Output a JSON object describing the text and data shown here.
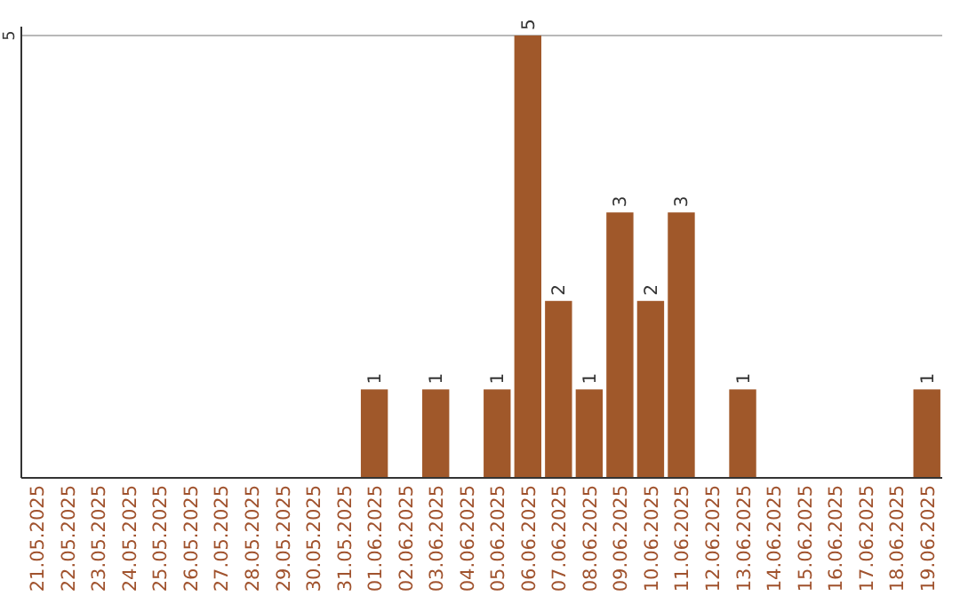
{
  "chart_data": {
    "type": "bar",
    "categories": [
      "21.05.2025",
      "22.05.2025",
      "23.05.2025",
      "24.05.2025",
      "25.05.2025",
      "26.05.2025",
      "27.05.2025",
      "28.05.2025",
      "29.05.2025",
      "30.05.2025",
      "31.05.2025",
      "01.06.2025",
      "02.06.2025",
      "03.06.2025",
      "04.06.2025",
      "05.06.2025",
      "06.06.2025",
      "07.06.2025",
      "08.06.2025",
      "09.06.2025",
      "10.06.2025",
      "11.06.2025",
      "12.06.2025",
      "13.06.2025",
      "14.06.2025",
      "15.06.2025",
      "16.06.2025",
      "17.06.2025",
      "18.06.2025",
      "19.06.2025"
    ],
    "values": [
      0,
      0,
      0,
      0,
      0,
      0,
      0,
      0,
      0,
      0,
      0,
      1,
      0,
      1,
      0,
      1,
      5,
      2,
      1,
      3,
      2,
      3,
      0,
      1,
      0,
      0,
      0,
      0,
      0,
      1
    ],
    "value_labels": [
      null,
      null,
      null,
      null,
      null,
      null,
      null,
      null,
      null,
      null,
      null,
      "1",
      null,
      "1",
      null,
      "1",
      "5",
      "2",
      "1",
      "3",
      "2",
      "3",
      null,
      "1",
      null,
      null,
      null,
      null,
      null,
      "1"
    ],
    "color": "#a0582a",
    "ylim": [
      0,
      5.1
    ],
    "yticks": [
      5
    ],
    "grid": "y"
  }
}
